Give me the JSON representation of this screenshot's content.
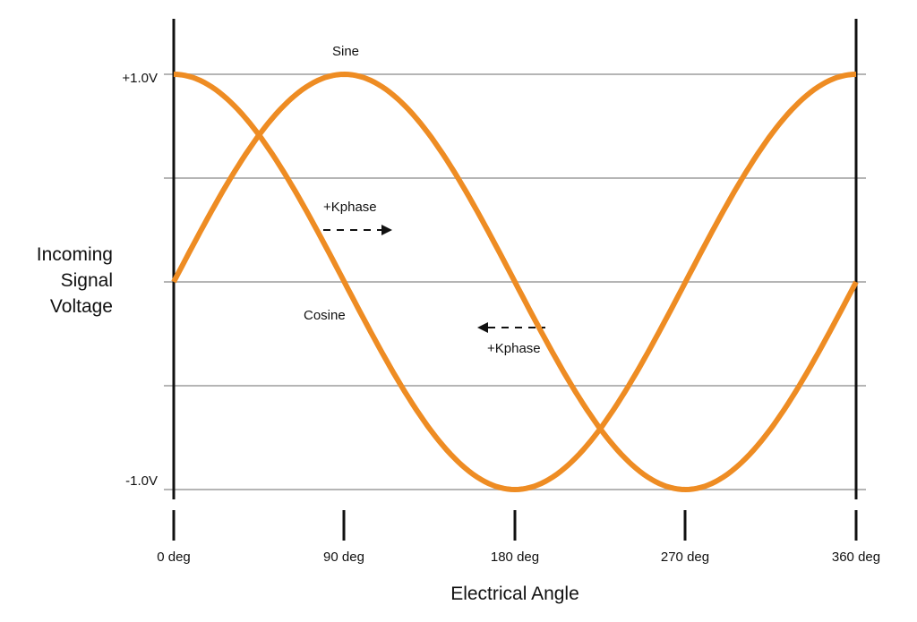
{
  "chart_data": {
    "type": "line",
    "title": "",
    "xlabel": "Electrical Angle",
    "ylabel_lines": [
      "Incoming",
      "Signal",
      "Voltage"
    ],
    "ylabel": "Incoming Signal Voltage",
    "x_ticks": [
      "0 deg",
      "90 deg",
      "180 deg",
      "270 deg",
      "360 deg"
    ],
    "y_ticks": [
      "+1.0V",
      "-1.0V"
    ],
    "xlim": [
      0,
      360
    ],
    "ylim": [
      -1.0,
      1.0
    ],
    "grid": true,
    "grid_y_values": [
      1.0,
      0.5,
      0.0,
      -0.5,
      -1.0
    ],
    "line_color": "#EE8C23",
    "series": [
      {
        "name": "Sine",
        "x": [
          0,
          45,
          90,
          135,
          180,
          225,
          270,
          315,
          360
        ],
        "values": [
          0,
          0.707,
          1.0,
          0.707,
          0,
          -0.707,
          -1.0,
          -0.707,
          0
        ]
      },
      {
        "name": "Cosine",
        "x": [
          0,
          45,
          90,
          135,
          180,
          225,
          270,
          315,
          360
        ],
        "values": [
          1.0,
          0.707,
          0,
          -0.707,
          -1.0,
          -0.707,
          0,
          0.707,
          1.0
        ]
      }
    ],
    "annotations": [
      {
        "text": "Sine",
        "near_x_deg": 90,
        "position": "above peak"
      },
      {
        "text": "Cosine",
        "near_x_deg": 90,
        "position": "left of cosine zero crossing"
      },
      {
        "text": "+Kphase",
        "arrow": "right",
        "near_x_deg": 90
      },
      {
        "text": "+Kphase",
        "arrow": "left",
        "near_x_deg": 180
      }
    ]
  }
}
